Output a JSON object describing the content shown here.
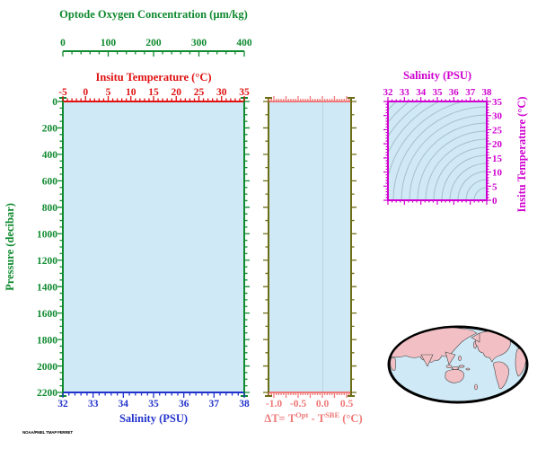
{
  "colors": {
    "oxygen_green": "#0f8a2f",
    "temp_red": "#e01111",
    "salinity_blue": "#2233cc",
    "delta_salmon": "#ef7878",
    "delta_border_olive": "#6d6d15",
    "ts_magenta": "#cf00cf",
    "plot_fill": "#cfe9f6",
    "contour_gray": "#a8bfc9",
    "map_land_pink": "#f2c0c4",
    "map_outline": "#000000"
  },
  "oxygen_axis": {
    "title": "Optode Oxygen Concentration (µm/kg)",
    "ticks": [
      "0",
      "100",
      "200",
      "300",
      "400"
    ]
  },
  "temp_axis": {
    "title": "Insitu Temperature (°C)",
    "ticks": [
      "-5",
      "0",
      "5",
      "10",
      "15",
      "20",
      "25",
      "30",
      "35"
    ]
  },
  "pressure_axis": {
    "title": "Pressure (decibar)",
    "ticks": [
      "0",
      "200",
      "400",
      "600",
      "800",
      "1000",
      "1200",
      "1400",
      "1600",
      "1800",
      "2000",
      "2200"
    ]
  },
  "salinity_axis": {
    "title": "Salinity (PSU)",
    "ticks": [
      "32",
      "33",
      "34",
      "35",
      "36",
      "37",
      "38"
    ]
  },
  "delta_axis": {
    "ticks": [
      "-1.0",
      "-0.5",
      "0.0",
      "0.5"
    ],
    "label_parts": {
      "t1": "ΔT= T",
      "sup1": "Opt",
      "t2": " - T",
      "sup2": "SBE",
      "t3": " (°C)"
    }
  },
  "ts_plot": {
    "salinity_title": "Salinity (PSU)",
    "salinity_ticks": [
      "32",
      "33",
      "34",
      "35",
      "36",
      "37",
      "38"
    ],
    "temp_title": "Insitu Temperature (°C)",
    "temp_ticks": [
      "35",
      "30",
      "25",
      "20",
      "15",
      "10",
      "5",
      "0"
    ]
  },
  "stamp": "NOAA/PMEL TMAP FERRET",
  "chart_data": [
    {
      "type": "line",
      "title": "Profile panel (empty profile axes)",
      "x_axes": [
        {
          "label": "Salinity (PSU)",
          "position": "bottom",
          "range": [
            32,
            38
          ],
          "major_tick": 1,
          "color": "#2233cc"
        },
        {
          "label": "Insitu Temperature (°C)",
          "position": "top",
          "range": [
            -5,
            35
          ],
          "major_tick": 5,
          "color": "#e01111"
        },
        {
          "label": "Optode Oxygen Concentration (µm/kg)",
          "position": "top-outer",
          "range": [
            0,
            400
          ],
          "major_tick": 100,
          "color": "#0f8a2f"
        }
      ],
      "y_axis": {
        "label": "Pressure (decibar)",
        "range": [
          0,
          2200
        ],
        "major_tick": 200,
        "inverted": true,
        "color": "#0f8a2f"
      },
      "grid": false,
      "series": []
    },
    {
      "type": "line",
      "title": "Temperature difference profile (empty)",
      "x_axis": {
        "label": "ΔT= T^Opt - T^SBE (°C)",
        "range": [
          -1.11,
          0.59
        ],
        "tick_labels": [
          -1.0,
          -0.5,
          0.0,
          0.5
        ],
        "color": "#ef7878"
      },
      "y_axis": {
        "label": "Pressure (decibar, shared)",
        "range": [
          0,
          2200
        ],
        "inverted": true
      },
      "annotations": [
        "faint vertical reference line at ΔT = 0"
      ],
      "series": []
    },
    {
      "type": "line",
      "title": "T-S diagram (isopycnal background only)",
      "x_axis": {
        "label": "Salinity (PSU)",
        "range": [
          32,
          38
        ],
        "major_tick": 1,
        "color": "#cf00cf"
      },
      "y_axis": {
        "label": "Insitu Temperature (°C)",
        "range": [
          0,
          35
        ],
        "major_tick": 5,
        "color": "#cf00cf"
      },
      "annotations": [
        "~16 gray curved isopycnal contour lines concentric about the cold/salty corner"
      ],
      "series": []
    },
    {
      "type": "map",
      "title": "Pacific-centered global locator map",
      "projection": "oval (Mollweide-like)",
      "land_color": "#f2c0c4",
      "ocean_color": "#cfe9f6",
      "series": []
    }
  ]
}
